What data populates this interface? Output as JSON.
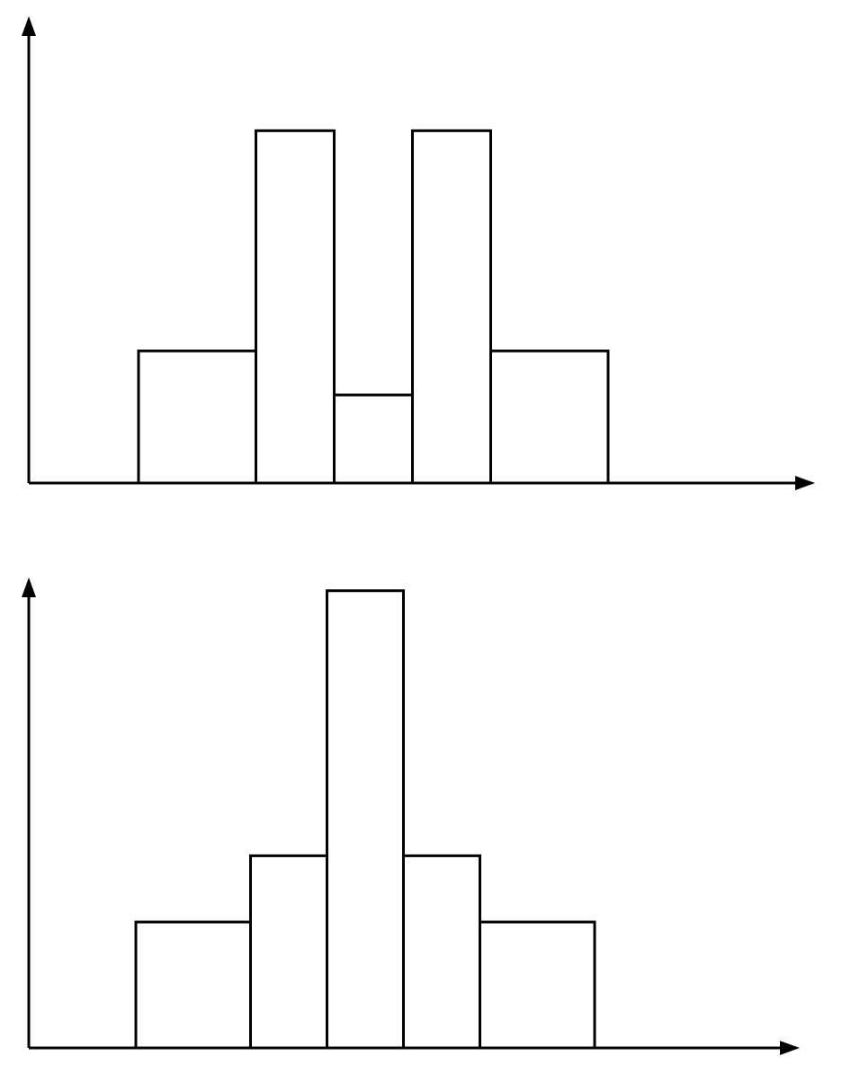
{
  "chart_data": [
    {
      "type": "bar",
      "variant": "histogram",
      "xlabel": "",
      "ylabel": "",
      "grid": false,
      "legend": "none",
      "bins": [
        {
          "x_start": 0.0,
          "x_end": 1.5,
          "value": 1.5
        },
        {
          "x_start": 1.5,
          "x_end": 2.5,
          "value": 4.0
        },
        {
          "x_start": 2.5,
          "x_end": 3.5,
          "value": 1.0
        },
        {
          "x_start": 3.5,
          "x_end": 4.5,
          "value": 4.0
        },
        {
          "x_start": 4.5,
          "x_end": 6.0,
          "value": 1.5
        }
      ],
      "xlim": [
        -1.4,
        8.8
      ],
      "ylim": [
        0,
        5.3
      ]
    },
    {
      "type": "bar",
      "variant": "histogram",
      "xlabel": "",
      "ylabel": "",
      "grid": false,
      "legend": "none",
      "bins": [
        {
          "x_start": 0.0,
          "x_end": 1.5,
          "value": 1.9
        },
        {
          "x_start": 1.5,
          "x_end": 2.5,
          "value": 2.9
        },
        {
          "x_start": 2.5,
          "x_end": 3.5,
          "value": 6.9
        },
        {
          "x_start": 3.5,
          "x_end": 4.5,
          "value": 2.9
        },
        {
          "x_start": 4.5,
          "x_end": 6.0,
          "value": 1.9
        }
      ],
      "xlim": [
        -1.4,
        8.8
      ],
      "ylim": [
        0,
        7.1
      ]
    }
  ]
}
